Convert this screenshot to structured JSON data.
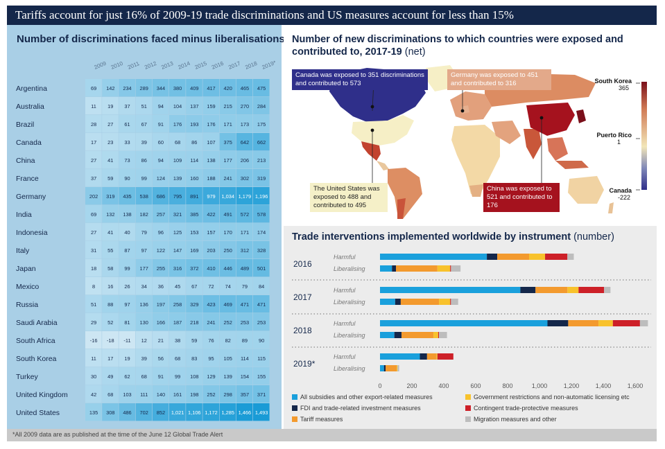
{
  "header": {
    "title": "Tariffs account for just 16% of 2009-19 trade discriminations and US measures account for less than 15%"
  },
  "footnote": "*All 2009 data are as published at the time of the June 12 Global Trade Alert",
  "colors": {
    "banner": "#14274a",
    "table_panel": "#a9cfe6",
    "footnote_bar": "#c9c9c9"
  },
  "chart_data": [
    {
      "type": "heatmap",
      "title": "Number of discriminations faced minus liberalisations",
      "columns": [
        "2009",
        "2010",
        "2011",
        "2012",
        "2013",
        "2014",
        "2015",
        "2016",
        "2017",
        "2018",
        "2019*"
      ],
      "rows": [
        "Argentina",
        "Australia",
        "Brazil",
        "Canada",
        "China",
        "France",
        "Germany",
        "India",
        "Indonesia",
        "Italy",
        "Japan",
        "Mexico",
        "Russia",
        "Saudi Arabia",
        "South Africa",
        "South Korea",
        "Turkey",
        "United Kingdom",
        "United States"
      ],
      "values": [
        [
          69,
          142,
          234,
          289,
          344,
          380,
          409,
          417,
          420,
          465,
          475
        ],
        [
          11,
          19,
          37,
          51,
          94,
          104,
          137,
          159,
          215,
          270,
          284
        ],
        [
          28,
          27,
          61,
          67,
          91,
          176,
          193,
          176,
          171,
          173,
          175
        ],
        [
          17,
          23,
          33,
          39,
          60,
          68,
          86,
          107,
          375,
          642,
          662
        ],
        [
          27,
          41,
          73,
          86,
          94,
          109,
          114,
          138,
          177,
          206,
          213
        ],
        [
          37,
          59,
          90,
          99,
          124,
          139,
          160,
          188,
          241,
          302,
          319
        ],
        [
          202,
          319,
          435,
          538,
          686,
          795,
          891,
          979,
          1034,
          1179,
          1196
        ],
        [
          69,
          132,
          138,
          182,
          257,
          321,
          385,
          422,
          491,
          572,
          578
        ],
        [
          27,
          41,
          40,
          79,
          96,
          125,
          153,
          157,
          170,
          171,
          174
        ],
        [
          31,
          55,
          87,
          97,
          122,
          147,
          169,
          203,
          250,
          312,
          328
        ],
        [
          18,
          58,
          99,
          177,
          255,
          316,
          372,
          410,
          446,
          489,
          501
        ],
        [
          8,
          16,
          26,
          34,
          36,
          45,
          67,
          72,
          74,
          79,
          84
        ],
        [
          51,
          88,
          97,
          136,
          197,
          258,
          329,
          423,
          469,
          471,
          471
        ],
        [
          29,
          52,
          81,
          130,
          166,
          187,
          218,
          241,
          252,
          253,
          253
        ],
        [
          -16,
          -18,
          -11,
          12,
          21,
          38,
          59,
          76,
          82,
          89,
          90
        ],
        [
          11,
          17,
          19,
          39,
          56,
          68,
          83,
          95,
          105,
          114,
          115
        ],
        [
          30,
          49,
          62,
          68,
          91,
          99,
          108,
          129,
          139,
          154,
          155
        ],
        [
          42,
          68,
          103,
          111,
          140,
          161,
          198,
          252,
          298,
          357,
          371
        ],
        [
          135,
          308,
          486,
          702,
          852,
          1021,
          1106,
          1172,
          1285,
          1466,
          1493
        ]
      ],
      "display_values": [
        [
          "69",
          "142",
          "234",
          "289",
          "344",
          "380",
          "409",
          "417",
          "420",
          "465",
          "475"
        ],
        [
          "11",
          "19",
          "37",
          "51",
          "94",
          "104",
          "137",
          "159",
          "215",
          "270",
          "284"
        ],
        [
          "28",
          "27",
          "61",
          "67",
          "91",
          "176",
          "193",
          "176",
          "171",
          "173",
          "175"
        ],
        [
          "17",
          "23",
          "33",
          "39",
          "60",
          "68",
          "86",
          "107",
          "375",
          "642",
          "662"
        ],
        [
          "27",
          "41",
          "73",
          "86",
          "94",
          "109",
          "114",
          "138",
          "177",
          "206",
          "213"
        ],
        [
          "37",
          "59",
          "90",
          "99",
          "124",
          "139",
          "160",
          "188",
          "241",
          "302",
          "319"
        ],
        [
          "202",
          "319",
          "435",
          "538",
          "686",
          "795",
          "891",
          "979",
          "1,034",
          "1,179",
          "1,196"
        ],
        [
          "69",
          "132",
          "138",
          "182",
          "257",
          "321",
          "385",
          "422",
          "491",
          "572",
          "578"
        ],
        [
          "27",
          "41",
          "40",
          "79",
          "96",
          "125",
          "153",
          "157",
          "170",
          "171",
          "174"
        ],
        [
          "31",
          "55",
          "87",
          "97",
          "122",
          "147",
          "169",
          "203",
          "250",
          "312",
          "328"
        ],
        [
          "18",
          "58",
          "99",
          "177",
          "255",
          "316",
          "372",
          "410",
          "446",
          "489",
          "501"
        ],
        [
          "8",
          "16",
          "26",
          "34",
          "36",
          "45",
          "67",
          "72",
          "74",
          "79",
          "84"
        ],
        [
          "51",
          "88",
          "97",
          "136",
          "197",
          "258",
          "329",
          "423",
          "469",
          "471",
          "471"
        ],
        [
          "29",
          "52",
          "81",
          "130",
          "166",
          "187",
          "218",
          "241",
          "252",
          "253",
          "253"
        ],
        [
          "-16",
          "-18",
          "-11",
          "12",
          "21",
          "38",
          "59",
          "76",
          "82",
          "89",
          "90"
        ],
        [
          "11",
          "17",
          "19",
          "39",
          "56",
          "68",
          "83",
          "95",
          "105",
          "114",
          "115"
        ],
        [
          "30",
          "49",
          "62",
          "68",
          "91",
          "99",
          "108",
          "129",
          "139",
          "154",
          "155"
        ],
        [
          "42",
          "68",
          "103",
          "111",
          "140",
          "161",
          "198",
          "252",
          "298",
          "357",
          "371"
        ],
        [
          "135",
          "308",
          "486",
          "702",
          "852",
          "1,021",
          "1,106",
          "1,172",
          "1,285",
          "1,466",
          "1,493"
        ]
      ]
    },
    {
      "type": "map",
      "title": "Number of new discriminations to which countries were exposed and contributed to, 2017-19",
      "title_suffix": "(net)",
      "legend": {
        "max_label": "South Korea",
        "max_value": "365",
        "mid_label": "Puerto Rico",
        "mid_value": "1",
        "min_label": "Canada",
        "min_value": "-222",
        "colors": [
          "#7a0f1a",
          "#d07a55",
          "#f2e6b8",
          "#8088b8",
          "#2f2f8a"
        ]
      },
      "callouts": [
        {
          "name": "Canada",
          "text": "Canada was exposed to 351 discriminations and contributed to 573",
          "color": "#2f2f8a"
        },
        {
          "name": "Germany",
          "text": "Germany was exposed to 451 and contributed to 316",
          "color": "#e3a98a"
        },
        {
          "name": "United States",
          "text": "The United States was exposed to 488 and contributed to 495",
          "color": "#f5f0c8"
        },
        {
          "name": "China",
          "text": "China was exposed to 521 and contributed to 176",
          "color": "#a5121e"
        }
      ]
    },
    {
      "type": "bar",
      "orientation": "horizontal",
      "stacked": true,
      "title": "Trade interventions implemented worldwide by instrument",
      "title_suffix": "(number)",
      "groups": [
        "2016",
        "2017",
        "2018",
        "2019*"
      ],
      "categories": [
        "Harmful",
        "Liberalising"
      ],
      "xlim": [
        0,
        1700
      ],
      "xticks": [
        "0",
        "200",
        "400",
        "600",
        "800",
        "1,000",
        "1,200",
        "1,400",
        "1,600"
      ],
      "xtick_values": [
        0,
        200,
        400,
        600,
        800,
        1000,
        1200,
        1400,
        1600
      ],
      "series": [
        {
          "name": "All subsidies and other export-related measures",
          "color": "#1aa0dc",
          "harmful": [
            670,
            880,
            1050,
            250
          ],
          "liberalising": [
            75,
            95,
            90,
            25
          ]
        },
        {
          "name": "FDI and trade-related investment measures",
          "color": "#14274a",
          "harmful": [
            65,
            95,
            130,
            45
          ],
          "liberalising": [
            25,
            35,
            45,
            10
          ]
        },
        {
          "name": "Tariff measures",
          "color": "#f39a2e",
          "harmful": [
            200,
            200,
            190,
            60
          ],
          "liberalising": [
            260,
            240,
            200,
            70
          ]
        },
        {
          "name": "Government restrictions and non-automatic licensing etc",
          "color": "#f8c22c",
          "harmful": [
            100,
            70,
            90,
            5
          ],
          "liberalising": [
            80,
            70,
            30,
            5
          ]
        },
        {
          "name": "Contingent trade-protective measures",
          "color": "#cd2028",
          "harmful": [
            140,
            160,
            170,
            100
          ],
          "liberalising": [
            5,
            5,
            5,
            0
          ]
        },
        {
          "name": "Migration measures and other",
          "color": "#bdbdbd",
          "harmful": [
            40,
            40,
            50,
            0
          ],
          "liberalising": [
            60,
            45,
            50,
            10
          ]
        }
      ]
    }
  ]
}
